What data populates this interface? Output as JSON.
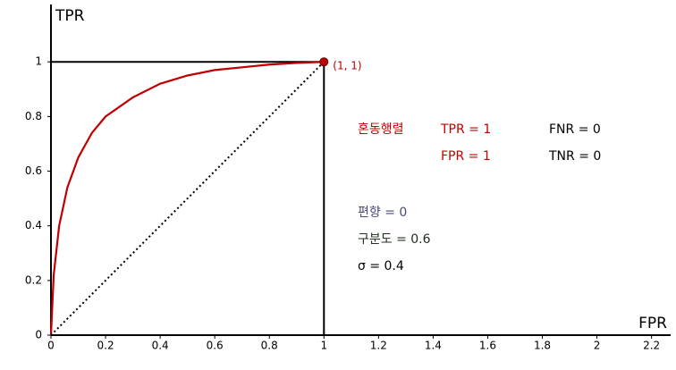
{
  "chart_data": {
    "type": "line",
    "xlabel": "FPR",
    "ylabel": "TPR",
    "xlim": [
      0,
      2.27
    ],
    "ylim": [
      0,
      1.21
    ],
    "xticks": [
      0,
      0.2,
      0.4,
      0.6,
      0.8,
      1,
      1.2,
      1.4,
      1.6,
      1.8,
      2,
      2.2
    ],
    "yticks": [
      0,
      0.2,
      0.4,
      0.6,
      0.8,
      1
    ],
    "series": [
      {
        "color": "#c00000",
        "style": "solid",
        "x": [
          0,
          0.01,
          0.03,
          0.06,
          0.1,
          0.15,
          0.2,
          0.3,
          0.4,
          0.5,
          0.6,
          0.7,
          0.8,
          0.9,
          1
        ],
        "values": [
          0,
          0.22,
          0.4,
          0.54,
          0.65,
          0.74,
          0.8,
          0.87,
          0.92,
          0.95,
          0.97,
          0.98,
          0.99,
          0.996,
          1
        ]
      },
      {
        "color": "#000000",
        "style": "dotted",
        "x": [
          0,
          1
        ],
        "values": [
          0,
          1
        ]
      }
    ],
    "points": [
      {
        "x": 1,
        "y": 1,
        "label": "(1, 1)",
        "color": "#c00000"
      }
    ],
    "annotations": [
      {
        "text": "혼동행렬",
        "color": "#c00000"
      },
      {
        "text": "TPR = 1",
        "color": "#c00000"
      },
      {
        "text": "FNR = 0",
        "color": "#000000"
      },
      {
        "text": "FPR = 1",
        "color": "#c00000"
      },
      {
        "text": "TNR = 0",
        "color": "#000000"
      },
      {
        "text": "편향 = 0",
        "color": "#4a4a7a"
      },
      {
        "text": "구분도 = 0.6",
        "color": "#203020"
      },
      {
        "text": "σ = 0.4",
        "color": "#000000"
      }
    ]
  }
}
